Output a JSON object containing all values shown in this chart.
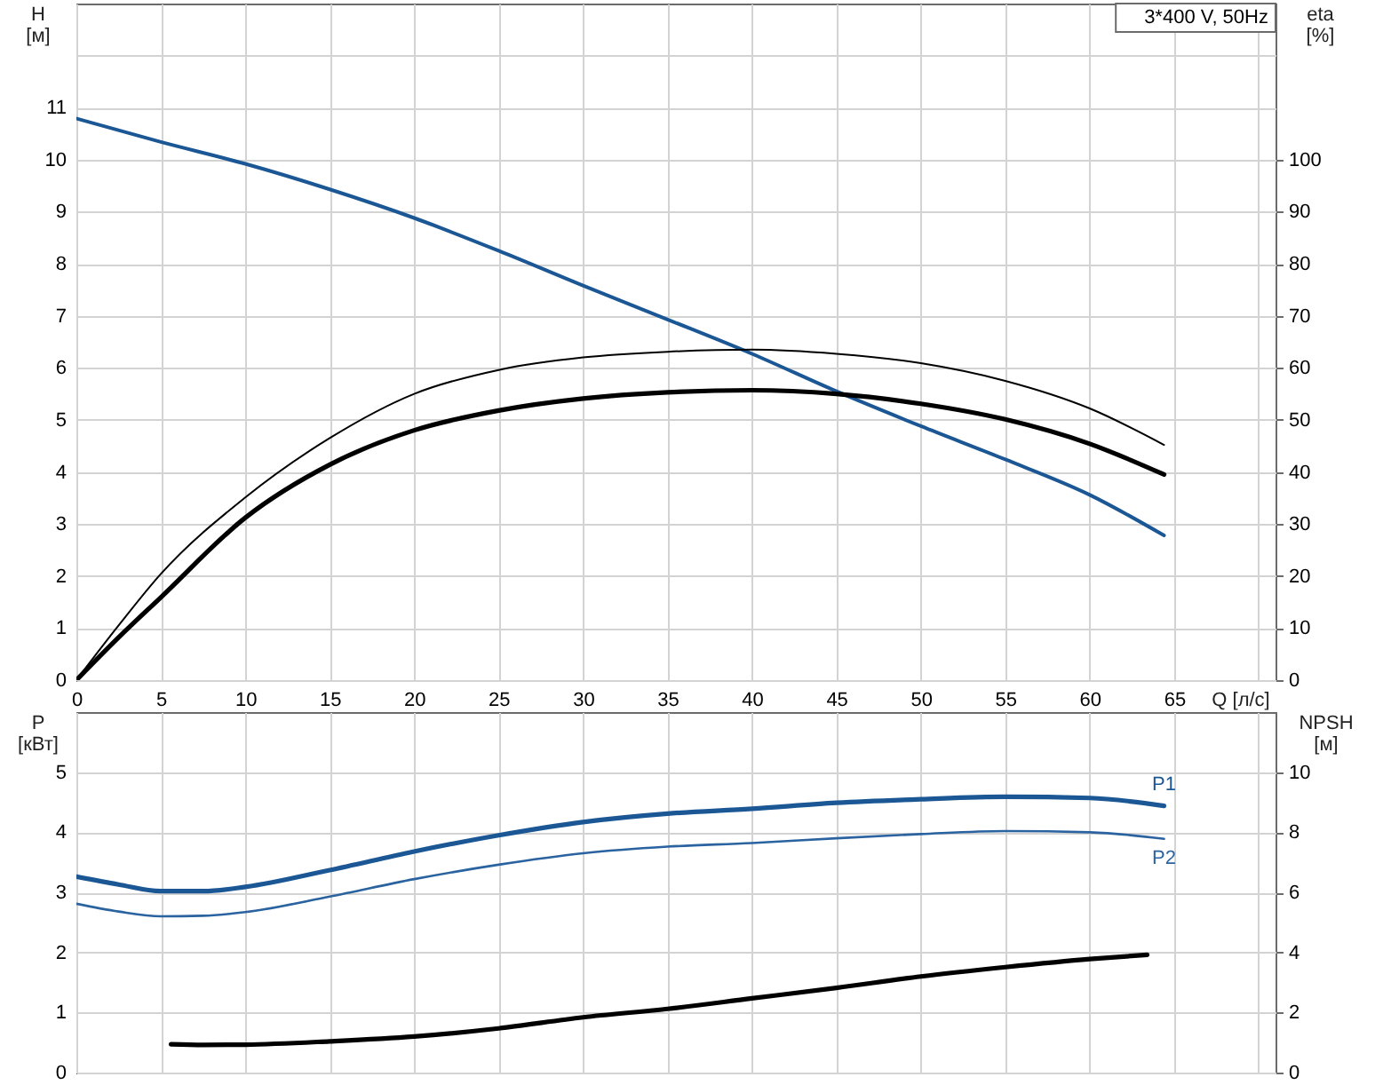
{
  "chart_data": [
    {
      "type": "line",
      "xlabel": "Q [л/с]",
      "ylabel": "H [м]",
      "y2label": "eta [%]",
      "annotations": [
        "3*400 V, 50Hz"
      ],
      "xlim": [
        0,
        71
      ],
      "xticks": [
        0,
        5,
        10,
        15,
        20,
        25,
        30,
        35,
        40,
        45,
        50,
        55,
        60,
        65,
        {
          "value": 70,
          "label": null
        }
      ],
      "ylim": [
        0,
        13
      ],
      "yticks": [
        0,
        1,
        2,
        3,
        4,
        5,
        6,
        7,
        8,
        9,
        10,
        11,
        {
          "value": 12,
          "label": null
        }
      ],
      "y2lim": [
        0,
        130
      ],
      "y2ticks": [
        0,
        10,
        20,
        30,
        40,
        50,
        60,
        70,
        80,
        90,
        100
      ],
      "grid": true,
      "series": [
        {
          "color": "#1b5794",
          "x": [
            0,
            5,
            10,
            15,
            20,
            25,
            30,
            35,
            40,
            45,
            50,
            55,
            60,
            64.4
          ],
          "values": [
            10.79,
            10.34,
            9.92,
            9.43,
            8.88,
            8.25,
            7.58,
            6.93,
            6.27,
            5.55,
            4.88,
            4.24,
            3.56,
            2.78
          ]
        },
        {
          "color": "#000000",
          "axis": "y2",
          "x": [
            0,
            2.5,
            5,
            10,
            15,
            20,
            25,
            30,
            35,
            40,
            45,
            50,
            55,
            60,
            64.4
          ],
          "values": [
            0,
            10.5,
            20.4,
            35.1,
            46.5,
            55,
            59.6,
            62,
            63.1,
            63.5,
            62.7,
            60.9,
            57.5,
            52.2,
            45.2
          ]
        },
        {
          "color": "#000000",
          "axis": "y2",
          "x": [
            0,
            2.5,
            5,
            10,
            15,
            20,
            25,
            30,
            35,
            40,
            45,
            50,
            55,
            60,
            64.4
          ],
          "values": [
            0,
            8.2,
            15.9,
            31.2,
            41.4,
            48,
            51.8,
            54.1,
            55.3,
            55.7,
            55,
            53.1,
            50.1,
            45.4,
            39.5
          ]
        }
      ]
    },
    {
      "type": "line",
      "ylabel": "P [кВт]",
      "y2label": "NPSH [м]",
      "tick_labels": "y",
      "xlim": [
        0,
        71
      ],
      "xticks": [
        0,
        5,
        10,
        15,
        20,
        25,
        30,
        35,
        40,
        45,
        50,
        55,
        60,
        65,
        {
          "value": 70,
          "label": null
        }
      ],
      "ylim": [
        0,
        6
      ],
      "yticks": [
        0,
        1,
        2,
        3,
        4,
        5
      ],
      "y2lim": [
        0,
        12
      ],
      "y2ticks": [
        0,
        2,
        4,
        6,
        8,
        10
      ],
      "grid": true,
      "series": [
        {
          "name": "P1",
          "color": "#1b5794",
          "x": [
            0,
            2.5,
            5,
            7.5,
            10,
            15,
            20,
            25,
            30,
            35,
            40,
            45,
            50,
            55,
            60,
            64.4
          ],
          "values": [
            3.26,
            3.13,
            3.02,
            3.02,
            3.09,
            3.37,
            3.68,
            3.95,
            4.17,
            4.31,
            4.39,
            4.49,
            4.55,
            4.59,
            4.57,
            4.44
          ]
        },
        {
          "name": "P2",
          "color": "#2a63a0",
          "x": [
            0,
            2.5,
            5,
            7.5,
            10,
            15,
            20,
            25,
            30,
            35,
            40,
            45,
            50,
            55,
            60,
            64.4
          ],
          "values": [
            2.81,
            2.68,
            2.6,
            2.61,
            2.67,
            2.93,
            3.22,
            3.46,
            3.65,
            3.76,
            3.82,
            3.9,
            3.97,
            4.02,
            4.0,
            3.89
          ]
        },
        {
          "color": "#000000",
          "axis": "y2",
          "x": [
            5.6,
            7.5,
            10,
            15,
            20,
            25,
            30,
            35,
            40,
            45,
            50,
            55,
            60,
            63.4
          ],
          "values": [
            0.94,
            0.92,
            0.93,
            1.04,
            1.2,
            1.47,
            1.84,
            2.12,
            2.47,
            2.82,
            3.2,
            3.51,
            3.78,
            3.92
          ]
        }
      ]
    }
  ]
}
